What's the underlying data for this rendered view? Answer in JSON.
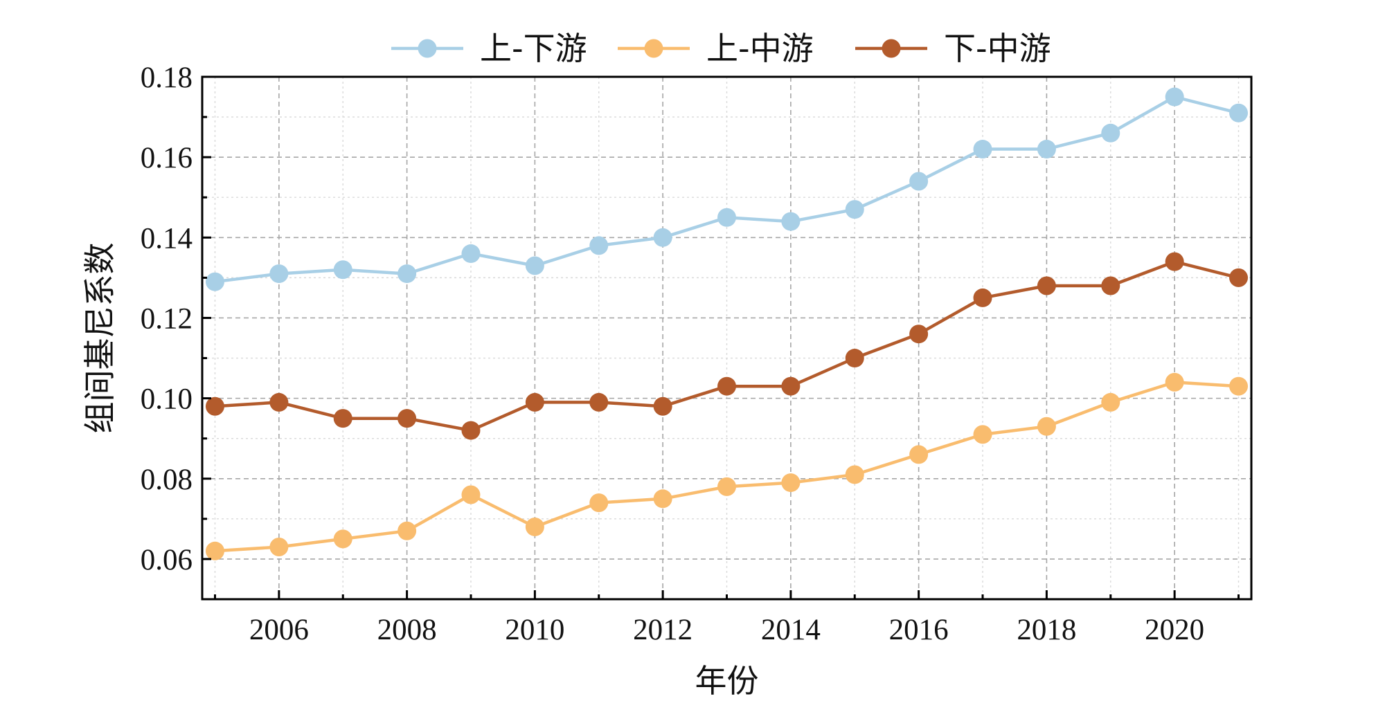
{
  "chart_data": {
    "type": "line",
    "title": "",
    "xlabel": "年份",
    "ylabel": "组间基尼系数",
    "xlim": [
      2004.8,
      2021.2
    ],
    "ylim": [
      0.05,
      0.18
    ],
    "x_ticks": [
      2006,
      2008,
      2010,
      2012,
      2014,
      2016,
      2018,
      2020
    ],
    "y_ticks": [
      0.06,
      0.08,
      0.1,
      0.12,
      0.14,
      0.16,
      0.18
    ],
    "y_tick_labels": [
      "0.06",
      "0.08",
      "0.10",
      "0.12",
      "0.14",
      "0.16",
      "0.18"
    ],
    "grid": true,
    "legend_position": "top-center",
    "x": [
      2005,
      2006,
      2007,
      2008,
      2009,
      2010,
      2011,
      2012,
      2013,
      2014,
      2015,
      2016,
      2017,
      2018,
      2019,
      2020,
      2021
    ],
    "series": [
      {
        "name": "上-下游",
        "color": "#a8cfe6",
        "values": [
          0.129,
          0.131,
          0.132,
          0.131,
          0.136,
          0.133,
          0.138,
          0.14,
          0.145,
          0.144,
          0.147,
          0.154,
          0.162,
          0.162,
          0.166,
          0.175,
          0.171
        ]
      },
      {
        "name": "上-中游",
        "color": "#f9bc6e",
        "values": [
          0.062,
          0.063,
          0.065,
          0.067,
          0.076,
          0.068,
          0.074,
          0.075,
          0.078,
          0.079,
          0.081,
          0.086,
          0.091,
          0.093,
          0.099,
          0.104,
          0.103
        ]
      },
      {
        "name": "下-中游",
        "color": "#b35b2c",
        "values": [
          0.098,
          0.099,
          0.095,
          0.095,
          0.092,
          0.099,
          0.099,
          0.098,
          0.103,
          0.103,
          0.11,
          0.116,
          0.125,
          0.128,
          0.128,
          0.134,
          0.13
        ]
      }
    ]
  }
}
